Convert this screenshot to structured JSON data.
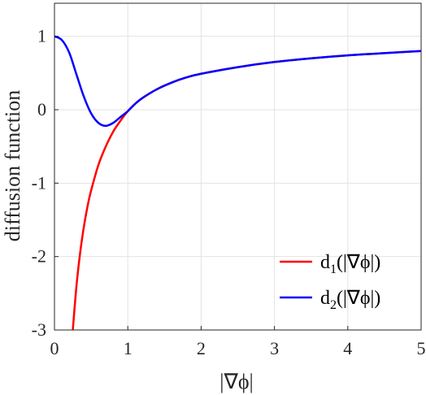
{
  "chart_data": {
    "type": "line",
    "xlabel": "|∇ϕ|",
    "ylabel": "diffusion function",
    "xlim": [
      0,
      5
    ],
    "ylim": [
      -3,
      1.45
    ],
    "x_ticks": [
      "0",
      "1",
      "2",
      "3",
      "4",
      "5"
    ],
    "y_ticks": [
      "1",
      "0",
      "-1",
      "-2",
      "-3"
    ],
    "grid": true,
    "legend_position": "bottom-right",
    "series": [
      {
        "name": "d1(|∇ϕ|)",
        "name_parts": {
          "main": "d",
          "sub": "1",
          "rest": "(|∇ϕ|)"
        },
        "color": "#ff0000",
        "x": [
          0.25,
          0.3,
          0.35,
          0.4,
          0.45,
          0.5,
          0.6,
          0.7,
          0.8,
          0.9,
          1.0,
          1.1,
          1.2,
          1.4,
          1.6,
          1.8,
          2.0,
          2.5,
          3.0,
          3.5,
          4.0,
          4.5,
          5.0
        ],
        "y": [
          -3.0,
          -2.4,
          -1.95,
          -1.6,
          -1.32,
          -1.1,
          -0.75,
          -0.5,
          -0.3,
          -0.15,
          -0.02,
          0.08,
          0.16,
          0.28,
          0.37,
          0.44,
          0.49,
          0.58,
          0.65,
          0.7,
          0.74,
          0.77,
          0.8
        ]
      },
      {
        "name": "d2(|∇ϕ|)",
        "name_parts": {
          "main": "d",
          "sub": "2",
          "rest": "(|∇ϕ|)"
        },
        "color": "#0000ff",
        "x": [
          0.0,
          0.1,
          0.2,
          0.3,
          0.4,
          0.5,
          0.6,
          0.7,
          0.8,
          0.9,
          1.0,
          1.1,
          1.2,
          1.4,
          1.6,
          1.8,
          2.0,
          2.5,
          3.0,
          3.5,
          4.0,
          4.5,
          5.0
        ],
        "y": [
          1.0,
          0.95,
          0.78,
          0.48,
          0.18,
          -0.05,
          -0.18,
          -0.22,
          -0.18,
          -0.1,
          -0.02,
          0.08,
          0.16,
          0.28,
          0.37,
          0.44,
          0.49,
          0.58,
          0.65,
          0.7,
          0.74,
          0.77,
          0.8
        ]
      }
    ]
  }
}
